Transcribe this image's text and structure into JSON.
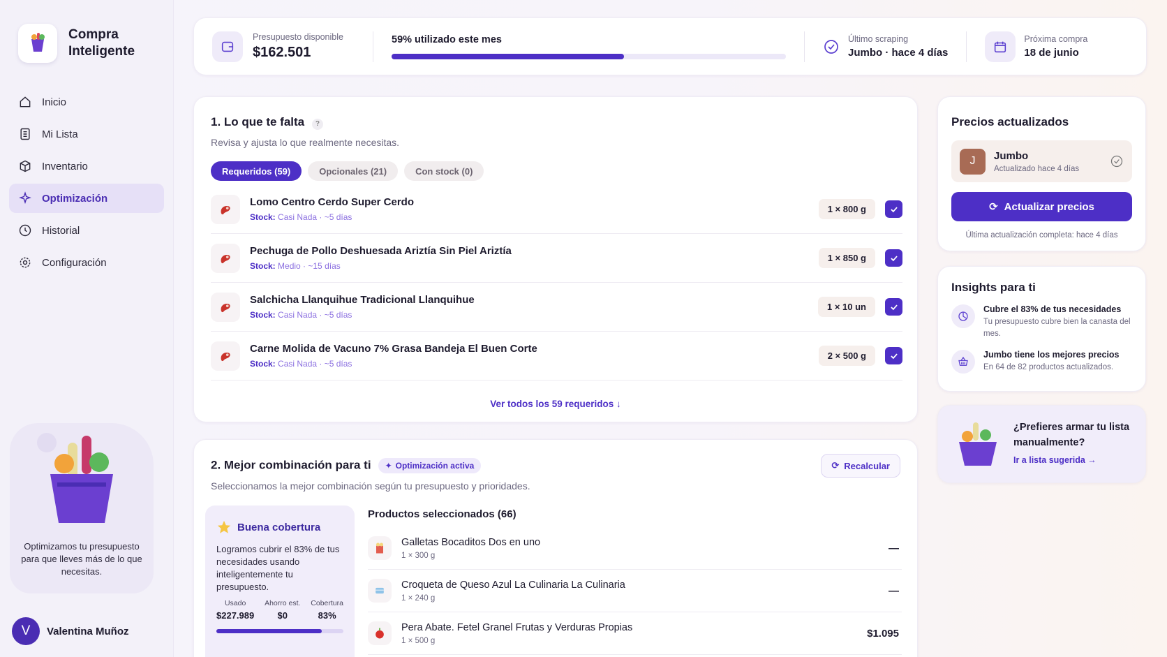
{
  "sidebar": {
    "brand": "Compra Inteligente",
    "nav": [
      "Inicio",
      "Mi Lista",
      "Inventario",
      "Optimización",
      "Historial",
      "Configuración"
    ],
    "promo": "Optimizamos tu presupuesto para que lleves más de lo que necesitas.",
    "user": {
      "initial": "V",
      "name": "Valentina Muñoz"
    }
  },
  "summary": {
    "budget_label": "Presupuesto disponible",
    "budget": "$162.501",
    "usage": "59% utilizado este mes",
    "scraping_label": "Último scraping",
    "scraping": "Jumbo · hace 4 días",
    "next_label": "Próxima compra",
    "next": "18 de junio"
  },
  "needs": {
    "title": "1. Lo que te falta",
    "help": "?",
    "subtitle": "Revisa y ajusta lo que realmente necesitas.",
    "tabs": [
      "Requeridos (59)",
      "Opcionales (21)",
      "Con stock (0)"
    ],
    "items": [
      {
        "name": "Lomo Centro Cerdo Super Cerdo",
        "stock_label": "Stock:",
        "stock": "Casi Nada · ~5 días",
        "qty": "1 × 800 g"
      },
      {
        "name": "Pechuga de Pollo Deshuesada Ariztía Sin Piel Ariztía",
        "stock_label": "Stock:",
        "stock": "Medio · ~15 días",
        "qty": "1 × 850 g"
      },
      {
        "name": "Salchicha Llanquihue Tradicional Llanquihue",
        "stock_label": "Stock:",
        "stock": "Casi Nada · ~5 días",
        "qty": "1 × 10 un"
      },
      {
        "name": "Carne Molida de Vacuno 7% Grasa Bandeja El Buen Corte",
        "stock_label": "Stock:",
        "stock": "Casi Nada · ~5 días",
        "qty": "2 × 500 g"
      }
    ],
    "more": "Ver todos los 59 requeridos ↓"
  },
  "combo": {
    "title": "2. Mejor combinación para ti",
    "badge": "Optimización activa",
    "button": "Recalcular",
    "subtitle": "Seleccionamos la mejor combinación según tu presupuesto y prioridades.",
    "coverage": {
      "title": "Buena cobertura",
      "text": "Logramos cubrir el 83% de tus necesidades usando inteligentemente tu presupuesto.",
      "stats": [
        {
          "label": "Usado",
          "value": "$227.989"
        },
        {
          "label": "Ahorro est.",
          "value": "$0"
        },
        {
          "label": "Cobertura",
          "value": "83%"
        }
      ]
    },
    "selected_title": "Productos seleccionados (66)",
    "products": [
      {
        "name": "Galletas Bocaditos Dos en uno",
        "qty": "1 × 300 g",
        "price": "—"
      },
      {
        "name": "Croqueta de Queso Azul La Culinaria La Culinaria",
        "qty": "1 × 240 g",
        "price": "—"
      },
      {
        "name": "Pera Abate. Fetel Granel Frutas y Verduras Propias",
        "qty": "1 × 500 g",
        "price": "$1.095"
      }
    ]
  },
  "prices": {
    "title": "Precios actualizados",
    "store": {
      "initial": "J",
      "name": "Jumbo",
      "updated": "Actualizado hace 4 días"
    },
    "button": "Actualizar precios",
    "note": "Última actualización completa: hace 4 días"
  },
  "insights": {
    "title": "Insights para ti",
    "items": [
      {
        "title": "Cubre el 83% de tus necesidades",
        "text": "Tu presupuesto cubre bien la canasta del mes."
      },
      {
        "title": "Jumbo tiene los mejores precios",
        "text": "En 64 de 82 productos actualizados."
      }
    ]
  },
  "manual": {
    "title": "¿Prefieres armar tu lista manualmente?",
    "link": "Ir a lista sugerida →"
  }
}
